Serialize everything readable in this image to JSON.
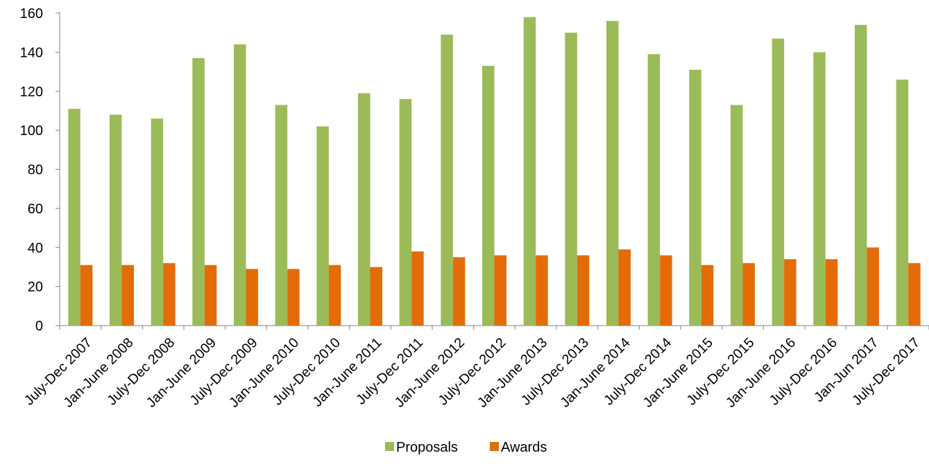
{
  "chart_data": {
    "type": "bar",
    "title": "",
    "xlabel": "",
    "ylabel": "",
    "categories": [
      "July-Dec 2007",
      "Jan-June 2008",
      "July-Dec 2008",
      "Jan-June 2009",
      "July-Dec 2009",
      "Jan-June 2010",
      "July-Dec 2010",
      "Jan-June 2011",
      "July-Dec 2011",
      "Jan-June 2012",
      "July-Dec 2012",
      "Jan-June 2013",
      "July-Dec 2013",
      "Jan-June 2014",
      "July-Dec 2014",
      "Jan-June 2015",
      "July-Dec 2015",
      "Jan-June 2016",
      "July-Dec 2016",
      "Jan-Jun 2017",
      "July-Dec 2017"
    ],
    "series": [
      {
        "name": "Proposals",
        "color": "#9BBB59",
        "values": [
          111,
          108,
          106,
          137,
          144,
          113,
          102,
          119,
          116,
          149,
          133,
          158,
          150,
          156,
          139,
          131,
          113,
          147,
          140,
          154,
          126
        ]
      },
      {
        "name": "Awards",
        "color": "#E36C09",
        "values": [
          31,
          31,
          32,
          31,
          29,
          29,
          31,
          30,
          38,
          35,
          36,
          36,
          36,
          39,
          36,
          31,
          32,
          34,
          34,
          40,
          32
        ]
      }
    ],
    "ylim": [
      0,
      160
    ],
    "yticks": [
      "0",
      "20",
      "40",
      "60",
      "80",
      "100",
      "120",
      "140",
      "160"
    ],
    "grid": false,
    "legend_position": "bottom-center"
  }
}
